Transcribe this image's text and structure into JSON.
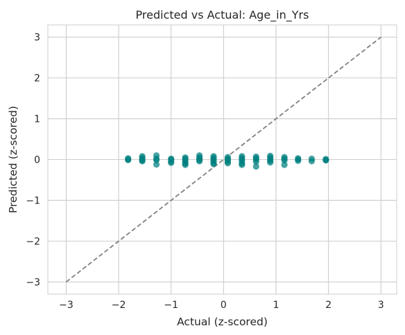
{
  "chart_data": {
    "type": "scatter",
    "title": "Predicted vs Actual: Age_in_Yrs",
    "xlabel": "Actual (z-scored)",
    "ylabel": "Predicted (z-scored)",
    "xlim": [
      -3.35,
      3.3
    ],
    "ylim": [
      -3.3,
      3.3
    ],
    "xticks": [
      -3,
      -2,
      -1,
      0,
      1,
      2,
      3
    ],
    "yticks": [
      -3,
      -2,
      -1,
      0,
      1,
      2,
      3
    ],
    "xtick_labels": [
      "−3",
      "−2",
      "−1",
      "0",
      "1",
      "2",
      "3"
    ],
    "ytick_labels": [
      "−3",
      "−2",
      "−1",
      "0",
      "1",
      "2",
      "3"
    ],
    "grid": true,
    "point_color": "#008080",
    "reference_line": {
      "style": "dashed",
      "color": "#7f7f7f",
      "from": [
        -3,
        -3
      ],
      "to": [
        3,
        3
      ]
    },
    "points": [
      {
        "x": -1.82,
        "y": 0.03
      },
      {
        "x": -1.82,
        "y": -0.01
      },
      {
        "x": -1.82,
        "y": 0.0
      },
      {
        "x": -1.55,
        "y": 0.08
      },
      {
        "x": -1.55,
        "y": 0.04
      },
      {
        "x": -1.55,
        "y": 0.0
      },
      {
        "x": -1.55,
        "y": -0.04
      },
      {
        "x": -1.55,
        "y": -0.02
      },
      {
        "x": -1.28,
        "y": 0.1
      },
      {
        "x": -1.28,
        "y": 0.02
      },
      {
        "x": -1.28,
        "y": -0.01
      },
      {
        "x": -1.28,
        "y": -0.12
      },
      {
        "x": -1.0,
        "y": 0.02
      },
      {
        "x": -1.0,
        "y": 0.0
      },
      {
        "x": -1.0,
        "y": -0.05
      },
      {
        "x": -1.0,
        "y": -0.08
      },
      {
        "x": -0.73,
        "y": 0.05
      },
      {
        "x": -0.73,
        "y": 0.02
      },
      {
        "x": -0.73,
        "y": -0.02
      },
      {
        "x": -0.73,
        "y": -0.06
      },
      {
        "x": -0.73,
        "y": -0.1
      },
      {
        "x": -0.73,
        "y": -0.13
      },
      {
        "x": -0.46,
        "y": 0.1
      },
      {
        "x": -0.46,
        "y": 0.05
      },
      {
        "x": -0.46,
        "y": 0.02
      },
      {
        "x": -0.46,
        "y": -0.01
      },
      {
        "x": -0.46,
        "y": -0.04
      },
      {
        "x": -0.19,
        "y": 0.08
      },
      {
        "x": -0.19,
        "y": 0.04
      },
      {
        "x": -0.19,
        "y": 0.0
      },
      {
        "x": -0.19,
        "y": -0.04
      },
      {
        "x": -0.19,
        "y": -0.08
      },
      {
        "x": -0.19,
        "y": -0.11
      },
      {
        "x": 0.08,
        "y": 0.06
      },
      {
        "x": 0.08,
        "y": 0.02
      },
      {
        "x": 0.08,
        "y": -0.01
      },
      {
        "x": 0.08,
        "y": -0.05
      },
      {
        "x": 0.08,
        "y": -0.09
      },
      {
        "x": 0.35,
        "y": 0.08
      },
      {
        "x": 0.35,
        "y": 0.04
      },
      {
        "x": 0.35,
        "y": 0.0
      },
      {
        "x": 0.35,
        "y": -0.04
      },
      {
        "x": 0.35,
        "y": -0.1
      },
      {
        "x": 0.35,
        "y": -0.13
      },
      {
        "x": 0.62,
        "y": 0.07
      },
      {
        "x": 0.62,
        "y": 0.03
      },
      {
        "x": 0.62,
        "y": 0.0
      },
      {
        "x": 0.62,
        "y": -0.05
      },
      {
        "x": 0.62,
        "y": -0.17
      },
      {
        "x": 0.89,
        "y": 0.09
      },
      {
        "x": 0.89,
        "y": 0.05
      },
      {
        "x": 0.89,
        "y": 0.01
      },
      {
        "x": 0.89,
        "y": -0.03
      },
      {
        "x": 0.89,
        "y": -0.07
      },
      {
        "x": 1.16,
        "y": 0.06
      },
      {
        "x": 1.16,
        "y": 0.02
      },
      {
        "x": 1.16,
        "y": -0.02
      },
      {
        "x": 1.16,
        "y": -0.13
      },
      {
        "x": 1.42,
        "y": 0.03
      },
      {
        "x": 1.42,
        "y": 0.0
      },
      {
        "x": 1.42,
        "y": -0.03
      },
      {
        "x": 1.68,
        "y": 0.02
      },
      {
        "x": 1.68,
        "y": -0.04
      },
      {
        "x": 1.95,
        "y": 0.01
      },
      {
        "x": 1.95,
        "y": -0.01
      },
      {
        "x": 1.95,
        "y": -0.02
      }
    ]
  }
}
